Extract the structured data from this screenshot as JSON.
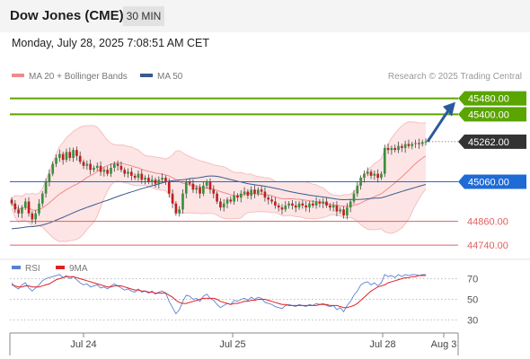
{
  "header": {
    "title": "Dow Jones (CME)",
    "timeframe": "30 MIN"
  },
  "timestamp": "Monday, July 28, 2025 7:08:51 AM CET",
  "legend": [
    {
      "label": "MA 20 + Bollinger Bands",
      "color": "#f08a8a"
    },
    {
      "label": "MA 50",
      "color": "#3a5a8c"
    }
  ],
  "copyright": "Research © 2025 Trading Central",
  "rsi_legend": [
    {
      "label": "RSI",
      "color": "#5b7fd6"
    },
    {
      "label": "9MA",
      "color": "#e02020"
    }
  ],
  "colors": {
    "up": "#3c8f3c",
    "down": "#c02020",
    "target": "#5aa500",
    "pivot": "#1e6bd6",
    "support": "#e06060",
    "current": "#333333",
    "arrow": "#2a5a9c"
  },
  "chart_data": {
    "type": "candlestick",
    "ylim": [
      44700,
      45560
    ],
    "x_ticks": [
      "Jul 24",
      "Jul 25",
      "Jul 28",
      "Aug 3"
    ],
    "levels": [
      {
        "value": 45480,
        "label": "45480.00",
        "kind": "target"
      },
      {
        "value": 45400,
        "label": "45400.00",
        "kind": "target"
      },
      {
        "value": 45262,
        "label": "45262.00",
        "kind": "current"
      },
      {
        "value": 45060,
        "label": "45060.00",
        "kind": "pivot"
      },
      {
        "value": 44860,
        "label": "44860.00",
        "kind": "support"
      },
      {
        "value": 44740,
        "label": "44740.00",
        "kind": "support"
      }
    ],
    "close": [
      44950,
      44920,
      44900,
      44930,
      44960,
      44900,
      44870,
      44900,
      44950,
      45000,
      45060,
      45100,
      45150,
      45180,
      45200,
      45170,
      45210,
      45180,
      45220,
      45190,
      45160,
      45140,
      45150,
      45120,
      45130,
      45140,
      45110,
      45120,
      45100,
      45130,
      45150,
      45140,
      45120,
      45100,
      45110,
      45090,
      45080,
      45100,
      45070,
      45080,
      45060,
      45070,
      45050,
      45070,
      45080,
      45060,
      45000,
      44950,
      44900,
      44920,
      45000,
      45060,
      45050,
      45020,
      45030,
      45000,
      45040,
      45060,
      45020,
      45000,
      44960,
      44930,
      44950,
      44970,
      44960,
      44990,
      44980,
      45000,
      45010,
      44990,
      45020,
      45000,
      45020,
      45010,
      44980,
      44970,
      44960,
      44940,
      44930,
      44920,
      44940,
      44950,
      44940,
      44930,
      44950,
      44940,
      44930,
      44950,
      44940,
      44960,
      44950,
      44960,
      44940,
      44930,
      44940,
      44910,
      44920,
      44890,
      44930,
      44960,
      45000,
      45040,
      45080,
      45100,
      45110,
      45090,
      45100,
      45080,
      45100,
      45230,
      45220,
      45230,
      45220,
      45240,
      45230,
      45250,
      45240,
      45250,
      45255,
      45250,
      45260,
      45262
    ],
    "rsi": {
      "ylim": [
        20,
        80
      ],
      "ticks": [
        70,
        50,
        30
      ],
      "rsi": [
        66,
        62,
        60,
        64,
        66,
        61,
        58,
        61,
        64,
        68,
        70,
        71,
        72,
        73,
        74,
        71,
        73,
        70,
        72,
        69,
        66,
        64,
        65,
        62,
        63,
        64,
        61,
        62,
        60,
        63,
        65,
        63,
        61,
        59,
        60,
        58,
        57,
        60,
        57,
        58,
        56,
        58,
        55,
        57,
        58,
        56,
        48,
        42,
        36,
        40,
        48,
        54,
        53,
        50,
        51,
        48,
        53,
        55,
        51,
        49,
        45,
        42,
        44,
        46,
        45,
        49,
        48,
        50,
        51,
        49,
        52,
        50,
        52,
        51,
        47,
        46,
        45,
        43,
        42,
        41,
        44,
        45,
        44,
        43,
        45,
        44,
        43,
        45,
        44,
        46,
        45,
        46,
        44,
        43,
        44,
        40,
        42,
        38,
        44,
        48,
        54,
        58,
        64,
        66,
        67,
        64,
        66,
        63,
        66,
        74,
        72,
        73,
        71,
        74,
        72,
        74,
        73,
        74,
        74,
        73,
        74,
        74
      ],
      "ma": [
        64,
        63,
        62,
        62,
        63,
        63,
        62,
        62,
        62,
        63,
        64,
        65,
        67,
        69,
        70,
        71,
        72,
        72,
        72,
        71,
        70,
        69,
        68,
        67,
        66,
        65,
        64,
        63,
        62,
        62,
        63,
        63,
        63,
        62,
        61,
        60,
        59,
        59,
        58,
        58,
        57,
        57,
        56,
        56,
        56,
        56,
        54,
        52,
        49,
        47,
        46,
        46,
        47,
        48,
        49,
        50,
        51,
        51,
        51,
        51,
        50,
        48,
        47,
        46,
        45,
        46,
        46,
        47,
        48,
        48,
        49,
        49,
        50,
        50,
        50,
        49,
        48,
        47,
        46,
        45,
        45,
        44,
        44,
        44,
        44,
        44,
        44,
        44,
        44,
        44,
        45,
        45,
        45,
        44,
        44,
        44,
        43,
        42,
        42,
        43,
        44,
        46,
        49,
        52,
        55,
        58,
        60,
        62,
        63,
        64,
        66,
        67,
        68,
        69,
        70,
        71,
        71,
        72,
        72,
        73,
        73,
        73
      ]
    }
  }
}
